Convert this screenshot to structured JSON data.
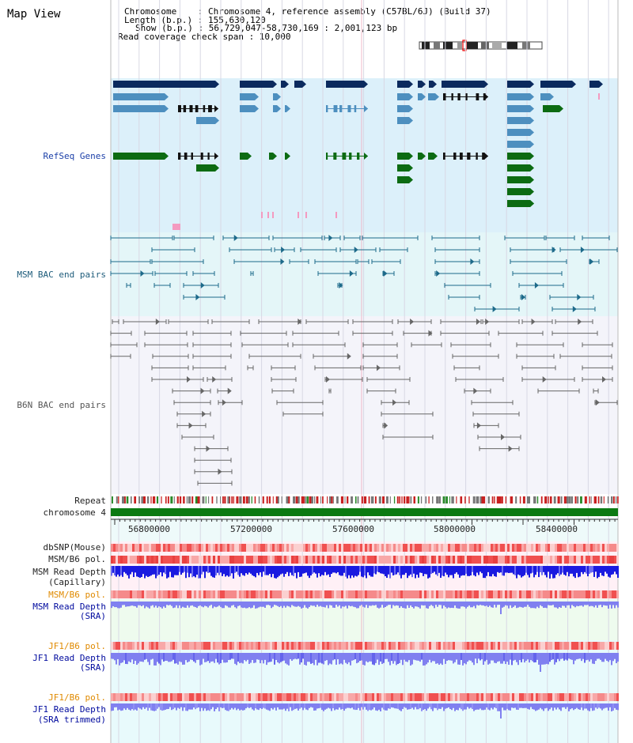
{
  "page_title": "Map View",
  "header": {
    "chromosome_line": "Chromosome    : Chromosome 4, reference assembly (C57BL/6J) (Build 37)",
    "length_line": "Length (b.p.) : 155,630,120",
    "show_line": "Show (b.p.) : 56,729,047-58,730,169 : 2,001,123 bp",
    "coverage_line": "Read coverage check span : 10,000"
  },
  "tracks": {
    "refseq": "RefSeq Genes",
    "msm_bac": "MSM BAC end pairs",
    "b6n_bac": "B6N BAC end pairs",
    "repeat": "Repeat",
    "chromosome": "chromosome 4",
    "dbsnp": "dbSNP(Mouse)",
    "msm_b6_pol": "MSM/B6 pol.",
    "msm_depth_cap_1": "MSM Read Depth",
    "msm_depth_cap_2": "(Capillary)",
    "msm_b6_pol_sra": "MSM/B6 pol.",
    "msm_depth_sra_1": "MSM Read Depth",
    "msm_depth_sra_2": "(SRA)",
    "jf1_b6_pol": "JF1/B6 pol.",
    "jf1_depth_1": "JF1 Read Depth",
    "jf1_depth_2": "(SRA)",
    "jf1_b6_pol_trim": "JF1/B6 pol.",
    "jf1_depth_trim_1": "JF1 Read Depth",
    "jf1_depth_trim_2": "(SRA trimmed)"
  },
  "axis_ticks": [
    "56800000",
    "57200000",
    "57600000",
    "58000000",
    "58400000"
  ],
  "colors": {
    "refseq_bg": "#dcf0fa",
    "msm_bg": "#e4f6f8",
    "b6n_bg": "#f4f4fa",
    "navy_gene": "#0b2a5e",
    "blue_gene": "#4d8fbf",
    "green_gene": "#0c6b12",
    "chrom_band": "#0c7a12",
    "snp_red": "#f28b8b",
    "depth_blue": "#1a1ae0",
    "depth_lilac": "#8080f0"
  }
}
